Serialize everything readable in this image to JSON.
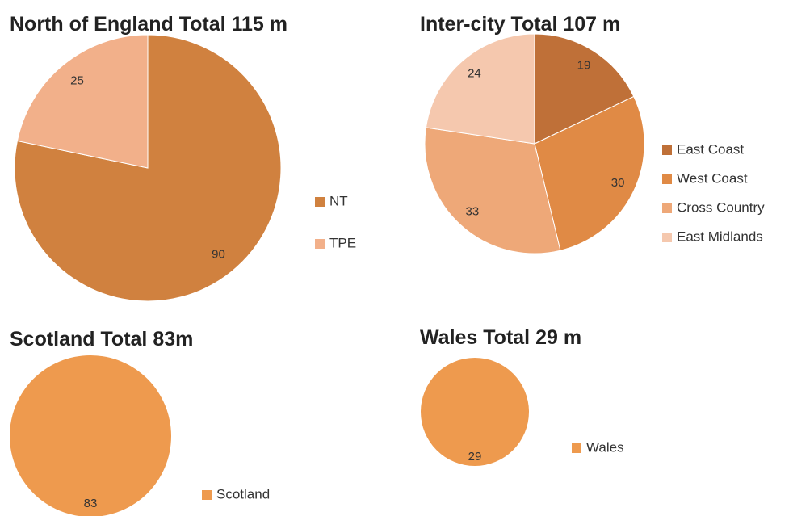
{
  "chart_data": [
    {
      "type": "pie",
      "title": "North of England Total 115 m",
      "categories": [
        "NT",
        "TPE"
      ],
      "values": [
        90,
        25
      ],
      "colors": [
        "#d0813f",
        "#f2b08a"
      ]
    },
    {
      "type": "pie",
      "title": "Inter-city Total 107 m",
      "categories": [
        "East Coast",
        "West Coast",
        "Cross Country",
        "East Midlands"
      ],
      "values": [
        19,
        30,
        33,
        24
      ],
      "colors": [
        "#bf7038",
        "#e08a45",
        "#eea878",
        "#f5c8ae"
      ]
    },
    {
      "type": "pie",
      "title": "Scotland Total 83m",
      "categories": [
        "Scotland"
      ],
      "values": [
        83
      ],
      "colors": [
        "#ee9a4e"
      ]
    },
    {
      "type": "pie",
      "title": "Wales Total 29 m",
      "categories": [
        "Wales"
      ],
      "values": [
        29
      ],
      "colors": [
        "#ee9a4e"
      ]
    }
  ]
}
